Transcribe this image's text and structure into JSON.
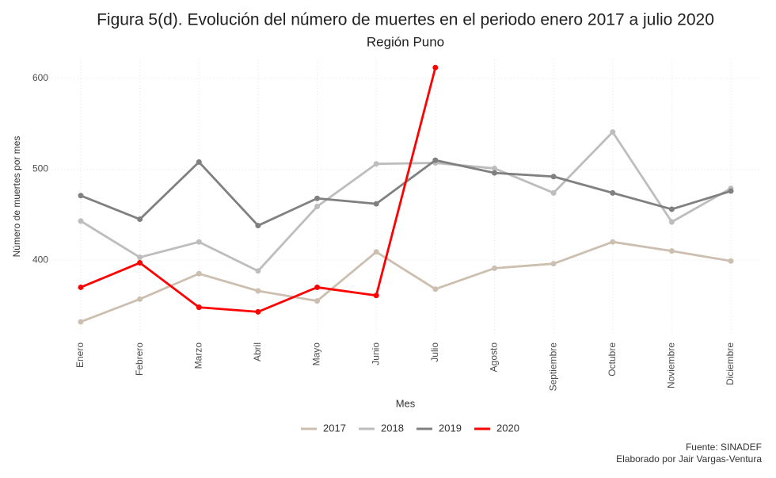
{
  "chart_data": {
    "type": "line",
    "title": "Figura 5(d). Evolución del número de muertes en el periodo enero 2017 a julio 2020",
    "subtitle": "Región Puno",
    "x_label": "Mes",
    "y_label": "Número de muertes por mes",
    "categories": [
      "Enero",
      "Febrero",
      "Marzo",
      "Abril",
      "Mayo",
      "Junio",
      "Julio",
      "Agosto",
      "Septiembre",
      "Octubre",
      "Noviembre",
      "Diciembre"
    ],
    "series": [
      {
        "name": "2017",
        "color": "#cdbfb0",
        "values": [
          332,
          357,
          385,
          366,
          355,
          409,
          368,
          391,
          396,
          420,
          410,
          399
        ]
      },
      {
        "name": "2018",
        "color": "#bdbdbd",
        "values": [
          443,
          403,
          420,
          388,
          459,
          506,
          507,
          501,
          474,
          541,
          442,
          479
        ]
      },
      {
        "name": "2019",
        "color": "#808080",
        "values": [
          471,
          445,
          508,
          438,
          468,
          462,
          510,
          496,
          492,
          474,
          456,
          476
        ]
      },
      {
        "name": "2020",
        "color": "#ff0000",
        "values": [
          370,
          397,
          348,
          343,
          370,
          361,
          612,
          null,
          null,
          null,
          null,
          null
        ]
      }
    ],
    "ylim": [
      318,
      621
    ],
    "yticks": [
      400,
      500,
      600
    ],
    "grid": true,
    "legend": "bottom",
    "caption": [
      "Fuente: SINADEF",
      "Elaborado por Jair Vargas-Ventura"
    ]
  }
}
